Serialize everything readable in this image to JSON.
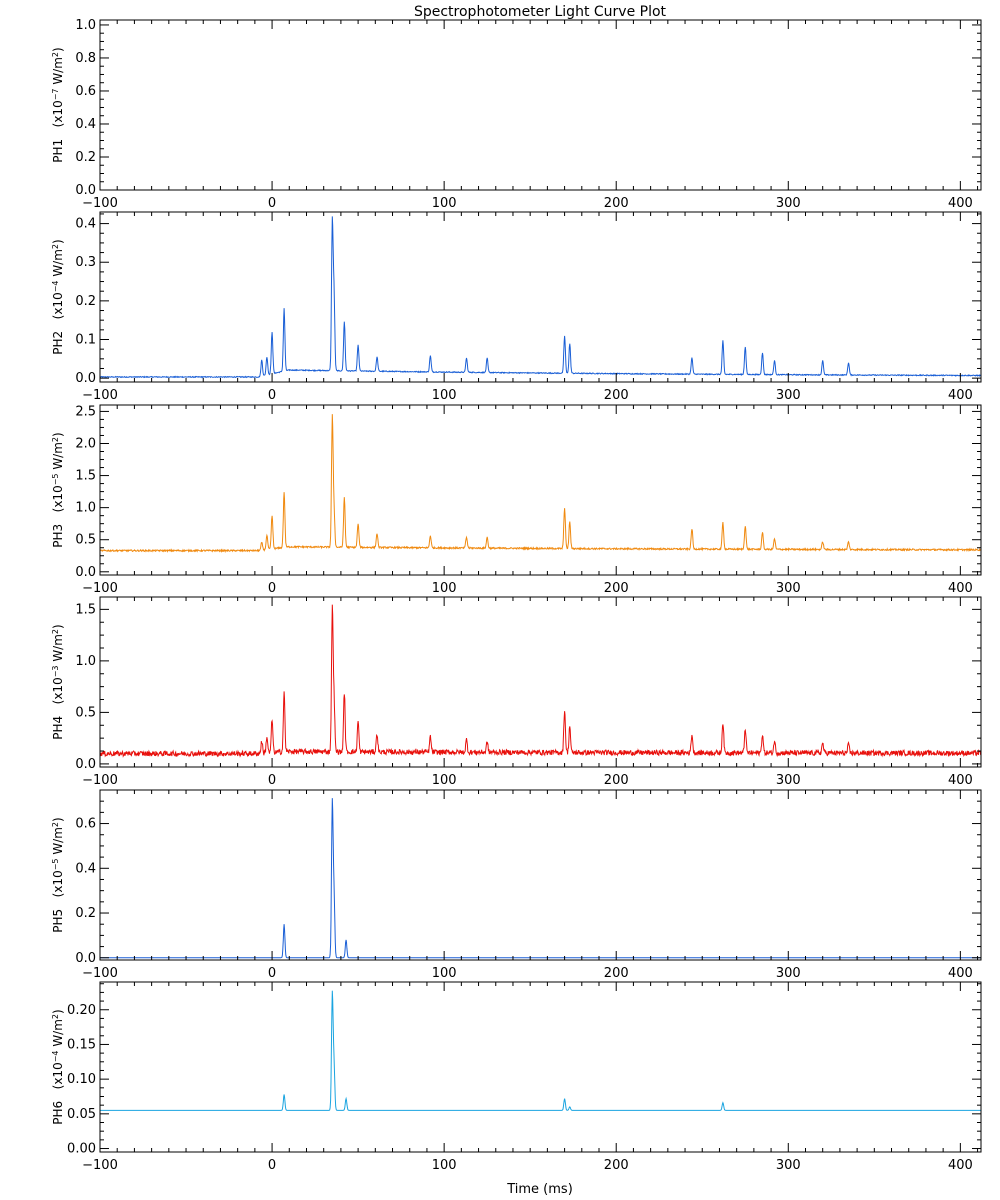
{
  "chart_data": {
    "type": "line",
    "title": "Spectrophotometer Light Curve Plot",
    "xlabel": "Time (ms)",
    "xlim": [
      -100,
      412
    ],
    "x_ticks": [
      -100,
      0,
      100,
      200,
      300,
      400
    ],
    "panels": [
      {
        "name": "PH1",
        "unit_exp": "-7",
        "ylim": [
          0,
          1.03
        ],
        "y_ticks": [
          "0.0",
          "0.2",
          "0.4",
          "0.6",
          "0.8",
          "1.0"
        ],
        "color": "#800080",
        "baseline": 0.0,
        "noise": 0,
        "decay": 0,
        "peaks": []
      },
      {
        "name": "PH2",
        "unit_exp": "-4",
        "ylim": [
          -0.01,
          0.43
        ],
        "y_ticks": [
          "0.0",
          "0.1",
          "0.2",
          "0.3",
          "0.4"
        ],
        "color": "#1a5fd6",
        "baseline": 0.003,
        "noise": 0.0012,
        "decay": 0.018,
        "peaks": [
          [
            -6,
            0.045
          ],
          [
            -3,
            0.05
          ],
          [
            0,
            0.11
          ],
          [
            7,
            0.165
          ],
          [
            35,
            0.385
          ],
          [
            36,
            0.2
          ],
          [
            42,
            0.13
          ],
          [
            50,
            0.07
          ],
          [
            61,
            0.04
          ],
          [
            92,
            0.045
          ],
          [
            113,
            0.04
          ],
          [
            125,
            0.04
          ],
          [
            170,
            0.1
          ],
          [
            173,
            0.08
          ],
          [
            244,
            0.045
          ],
          [
            262,
            0.09
          ],
          [
            275,
            0.075
          ],
          [
            285,
            0.06
          ],
          [
            292,
            0.04
          ],
          [
            320,
            0.04
          ],
          [
            335,
            0.035
          ]
        ]
      },
      {
        "name": "PH3",
        "unit_exp": "-5",
        "ylim": [
          -0.05,
          2.6
        ],
        "y_ticks": [
          "0.0",
          "0.5",
          "1.0",
          "1.5",
          "2.0",
          "2.5"
        ],
        "color": "#f08a10",
        "baseline": 0.33,
        "noise": 0.012,
        "decay": 0.06,
        "peaks": [
          [
            -6,
            0.45
          ],
          [
            -3,
            0.55
          ],
          [
            0,
            0.85
          ],
          [
            7,
            1.2
          ],
          [
            35,
            2.35
          ],
          [
            36,
            0.9
          ],
          [
            42,
            1.1
          ],
          [
            50,
            0.7
          ],
          [
            61,
            0.55
          ],
          [
            92,
            0.52
          ],
          [
            113,
            0.5
          ],
          [
            125,
            0.5
          ],
          [
            170,
            0.97
          ],
          [
            173,
            0.75
          ],
          [
            244,
            0.65
          ],
          [
            262,
            0.75
          ],
          [
            275,
            0.7
          ],
          [
            285,
            0.6
          ],
          [
            292,
            0.5
          ],
          [
            320,
            0.45
          ],
          [
            335,
            0.45
          ]
        ]
      },
      {
        "name": "PH4",
        "unit_exp": "-3",
        "ylim": [
          -0.03,
          1.62
        ],
        "y_ticks": [
          "0.0",
          "0.5",
          "1.0",
          "1.5"
        ],
        "color": "#e8100c",
        "baseline": 0.1,
        "noise": 0.025,
        "decay": 0.02,
        "peaks": [
          [
            -6,
            0.22
          ],
          [
            -3,
            0.26
          ],
          [
            0,
            0.42
          ],
          [
            7,
            0.68
          ],
          [
            35,
            1.48
          ],
          [
            36,
            0.6
          ],
          [
            42,
            0.68
          ],
          [
            50,
            0.4
          ],
          [
            61,
            0.28
          ],
          [
            92,
            0.25
          ],
          [
            113,
            0.22
          ],
          [
            125,
            0.2
          ],
          [
            170,
            0.52
          ],
          [
            173,
            0.36
          ],
          [
            244,
            0.28
          ],
          [
            262,
            0.4
          ],
          [
            275,
            0.34
          ],
          [
            285,
            0.28
          ],
          [
            292,
            0.22
          ],
          [
            320,
            0.2
          ],
          [
            335,
            0.18
          ]
        ]
      },
      {
        "name": "PH5",
        "unit_exp": "-5",
        "ylim": [
          -0.01,
          0.75
        ],
        "y_ticks": [
          "0.0",
          "0.2",
          "0.4",
          "0.6"
        ],
        "color": "#1a5fd6",
        "baseline": 0.0,
        "noise": 0,
        "decay": 0,
        "peaks": [
          [
            7,
            0.15
          ],
          [
            35,
            0.69
          ],
          [
            36,
            0.28
          ],
          [
            43,
            0.08
          ]
        ]
      },
      {
        "name": "PH6",
        "unit_exp": "-4",
        "ylim": [
          -0.005,
          0.24
        ],
        "y_ticks": [
          "0.00",
          "0.05",
          "0.10",
          "0.15",
          "0.20"
        ],
        "color": "#1aa4e0",
        "baseline": 0.055,
        "noise": 0,
        "decay": 0,
        "peaks": [
          [
            7,
            0.078
          ],
          [
            35,
            0.222
          ],
          [
            36,
            0.12
          ],
          [
            43,
            0.072
          ],
          [
            170,
            0.072
          ],
          [
            173,
            0.06
          ],
          [
            262,
            0.066
          ]
        ]
      }
    ]
  }
}
